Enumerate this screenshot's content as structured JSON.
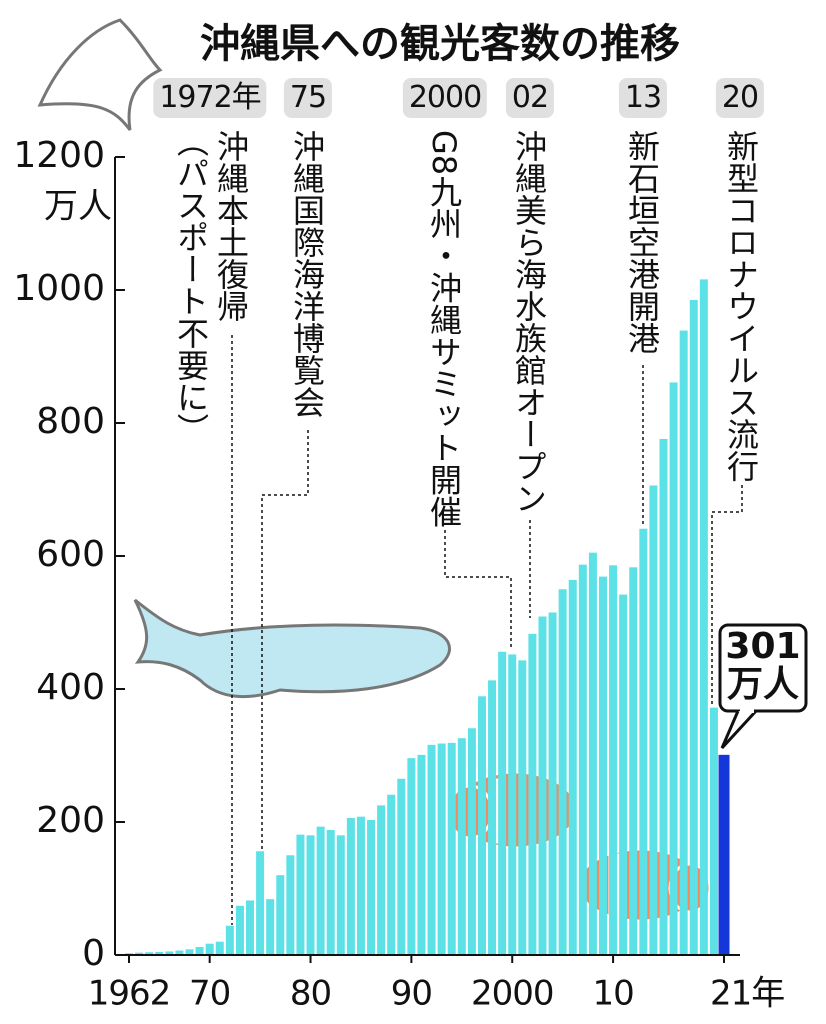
{
  "chart_data": {
    "type": "bar",
    "title": "沖縄県への観光客数の推移",
    "y_unit": "万人",
    "categories": [
      "1962",
      null,
      null,
      null,
      null,
      null,
      null,
      null,
      "70",
      null,
      null,
      null,
      null,
      null,
      null,
      null,
      null,
      null,
      "80",
      null,
      null,
      null,
      null,
      null,
      null,
      null,
      null,
      null,
      "90",
      null,
      null,
      null,
      null,
      null,
      null,
      null,
      null,
      null,
      "2000",
      null,
      null,
      null,
      null,
      null,
      null,
      null,
      null,
      null,
      "10",
      null,
      null,
      null,
      null,
      null,
      null,
      null,
      null,
      null,
      null,
      "21年"
    ],
    "values": [
      2.6,
      3.5,
      4.1,
      4.5,
      5.3,
      6.7,
      8.5,
      12,
      17,
      20,
      44,
      74,
      82,
      156,
      84,
      120,
      150,
      181,
      180,
      193,
      188,
      180,
      206,
      208,
      203,
      225,
      241,
      265,
      296,
      301,
      316,
      318,
      319,
      326,
      341,
      389,
      413,
      456,
      452,
      443,
      483,
      509,
      515,
      550,
      564,
      587,
      605,
      569,
      586,
      542,
      583,
      641,
      706,
      776,
      861,
      939,
      985,
      1016,
      372,
      301
    ],
    "value_labels": [
      null,
      null,
      null,
      null,
      null,
      null,
      null,
      null,
      null,
      null,
      null,
      null,
      null,
      null,
      null,
      null,
      null,
      null,
      null,
      null,
      null,
      null,
      null,
      null,
      null,
      null,
      null,
      null,
      null,
      null,
      null,
      null,
      null,
      null,
      null,
      null,
      null,
      null,
      null,
      null,
      null,
      null,
      null,
      null,
      null,
      null,
      null,
      null,
      null,
      null,
      null,
      null,
      null,
      null,
      null,
      null,
      null,
      null,
      null,
      "301万人"
    ],
    "colors": [
      "#5ce1e6",
      "#5ce1e6",
      "#5ce1e6",
      "#5ce1e6",
      "#5ce1e6",
      "#5ce1e6",
      "#5ce1e6",
      "#5ce1e6",
      "#5ce1e6",
      "#5ce1e6",
      "#5ce1e6",
      "#5ce1e6",
      "#5ce1e6",
      "#5ce1e6",
      "#5ce1e6",
      "#5ce1e6",
      "#5ce1e6",
      "#5ce1e6",
      "#5ce1e6",
      "#5ce1e6",
      "#5ce1e6",
      "#5ce1e6",
      "#5ce1e6",
      "#5ce1e6",
      "#5ce1e6",
      "#5ce1e6",
      "#5ce1e6",
      "#5ce1e6",
      "#5ce1e6",
      "#5ce1e6",
      "#5ce1e6",
      "#5ce1e6",
      "#5ce1e6",
      "#5ce1e6",
      "#5ce1e6",
      "#5ce1e6",
      "#5ce1e6",
      "#5ce1e6",
      "#5ce1e6",
      "#5ce1e6",
      "#5ce1e6",
      "#5ce1e6",
      "#5ce1e6",
      "#5ce1e6",
      "#5ce1e6",
      "#5ce1e6",
      "#5ce1e6",
      "#5ce1e6",
      "#5ce1e6",
      "#5ce1e6",
      "#5ce1e6",
      "#5ce1e6",
      "#5ce1e6",
      "#5ce1e6",
      "#5ce1e6",
      "#5ce1e6",
      "#5ce1e6",
      "#5ce1e6",
      "#5ce1e6",
      "#1437d9"
    ],
    "ylim": [
      0,
      1200
    ],
    "yticks": [
      0,
      200,
      400,
      600,
      800,
      1000,
      1200
    ],
    "annotations": [
      {
        "year": "1972年",
        "text": "沖縄本土復帰",
        "note": "（パスポート不要に）"
      },
      {
        "year": "75",
        "text": "沖縄国際海洋博覧会"
      },
      {
        "year": "2000",
        "text": "G8九州・沖縄サミット開催"
      },
      {
        "year": "02",
        "text": "沖縄美ら海水族館オープン"
      },
      {
        "year": "13",
        "text": "新石垣空港開港"
      },
      {
        "year": "20",
        "text": "新型コロナウイルス流行"
      }
    ]
  }
}
